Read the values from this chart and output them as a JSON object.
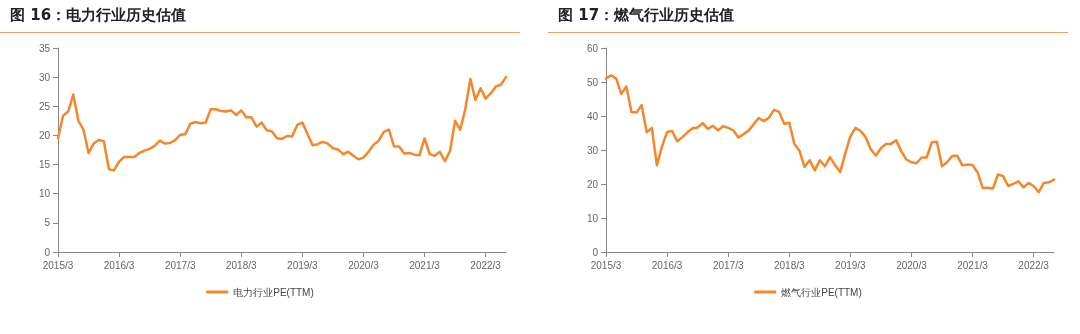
{
  "chart_data": [
    {
      "type": "line",
      "title": "图 16：电力行业历史估值",
      "categories": [
        "2015/3",
        null,
        null,
        null,
        null,
        null,
        null,
        null,
        null,
        null,
        null,
        null,
        "2016/3",
        null,
        null,
        null,
        null,
        null,
        null,
        null,
        null,
        null,
        null,
        null,
        "2017/3",
        null,
        null,
        null,
        null,
        null,
        null,
        null,
        null,
        null,
        null,
        null,
        "2018/3",
        null,
        null,
        null,
        null,
        null,
        null,
        null,
        null,
        null,
        null,
        null,
        "2019/3",
        null,
        null,
        null,
        null,
        null,
        null,
        null,
        null,
        null,
        null,
        null,
        "2020/3",
        null,
        null,
        null,
        null,
        null,
        null,
        null,
        null,
        null,
        null,
        null,
        "2021/3",
        null,
        null,
        null,
        null,
        null,
        null,
        null,
        null,
        null,
        null,
        null,
        "2022/3",
        null,
        null,
        null,
        null
      ],
      "series": [
        {
          "name": "电力行业PE(TTM)",
          "color": "#f5872b",
          "values": [
            19.5,
            23.4,
            24.1,
            27,
            22.5,
            21,
            17,
            18.6,
            19.2,
            19,
            14.2,
            14,
            15.5,
            16.3,
            16.3,
            16.3,
            17,
            17.4,
            17.7,
            18.2,
            19.1,
            18.6,
            18.7,
            19.2,
            20.1,
            20.2,
            22,
            22.3,
            22.1,
            22.2,
            24.5,
            24.5,
            24.2,
            24.1,
            24.3,
            23.5,
            24.3,
            23.1,
            23.1,
            21.5,
            22.2,
            20.9,
            20.7,
            19.5,
            19.4,
            19.9,
            19.8,
            21.8,
            22.2,
            20.3,
            18.3,
            18.5,
            18.9,
            18.6,
            17.8,
            17.6,
            16.8,
            17.2,
            16.5,
            15.9,
            16.2,
            17.2,
            18.4,
            19.1,
            20.6,
            21,
            18.1,
            18.1,
            16.9,
            17,
            16.7,
            16.6,
            19.5,
            16.8,
            16.5,
            17.2,
            15.6,
            17.3,
            22.5,
            21,
            24.5,
            29.7,
            26.1,
            28.1,
            26.3,
            27.2,
            28.4,
            28.7,
            30
          ]
        }
      ],
      "ylim": [
        0,
        35
      ],
      "yticks": [
        0,
        5,
        10,
        15,
        20,
        25,
        30,
        35
      ],
      "legend": "bottom",
      "grid": false,
      "marker": "none",
      "line_style": "solid"
    },
    {
      "type": "line",
      "title": "图 17：燃气行业历史估值",
      "categories": [
        "2015/3",
        null,
        null,
        null,
        null,
        null,
        null,
        null,
        null,
        null,
        null,
        null,
        "2016/3",
        null,
        null,
        null,
        null,
        null,
        null,
        null,
        null,
        null,
        null,
        null,
        "2017/3",
        null,
        null,
        null,
        null,
        null,
        null,
        null,
        null,
        null,
        null,
        null,
        "2018/3",
        null,
        null,
        null,
        null,
        null,
        null,
        null,
        null,
        null,
        null,
        null,
        "2019/3",
        null,
        null,
        null,
        null,
        null,
        null,
        null,
        null,
        null,
        null,
        null,
        "2020/3",
        null,
        null,
        null,
        null,
        null,
        null,
        null,
        null,
        null,
        null,
        null,
        "2021/3",
        null,
        null,
        null,
        null,
        null,
        null,
        null,
        null,
        null,
        null,
        null,
        "2022/3",
        null,
        null,
        null,
        null
      ],
      "series": [
        {
          "name": "燃气行业PE(TTM)",
          "color": "#f5872b",
          "values": [
            51,
            52,
            51,
            46.5,
            48.7,
            41.2,
            41,
            43.2,
            35.2,
            36.5,
            25.5,
            31,
            35.3,
            35.6,
            32.5,
            33.8,
            35.2,
            36.4,
            36.6,
            37.9,
            36.2,
            37.1,
            35.8,
            37,
            36.5,
            35.8,
            33.7,
            34.6,
            35.7,
            37.6,
            39.4,
            38.5,
            39.5,
            41.8,
            41.2,
            37.7,
            38,
            31.8,
            29.8,
            25,
            27,
            24,
            27,
            25.2,
            27.9,
            25.5,
            23.5,
            29,
            34,
            36.5,
            35.6,
            33.8,
            30.2,
            28.4,
            30.5,
            31.8,
            31.8,
            32.9,
            29.6,
            27.2,
            26.4,
            26.1,
            27.8,
            27.8,
            32.3,
            32.4,
            25.2,
            26.4,
            28.2,
            28.3,
            25.5,
            25.7,
            25.6,
            23.4,
            18.8,
            18.9,
            18.7,
            22.8,
            22.3,
            19.4,
            20,
            20.8,
            19,
            20.3,
            19.4,
            17.6,
            20.3,
            20.5,
            21.3
          ]
        }
      ],
      "ylim": [
        0,
        60
      ],
      "yticks": [
        0,
        10,
        20,
        30,
        40,
        50,
        60
      ],
      "legend": "bottom",
      "grid": false,
      "marker": "none",
      "line_style": "solid"
    }
  ]
}
